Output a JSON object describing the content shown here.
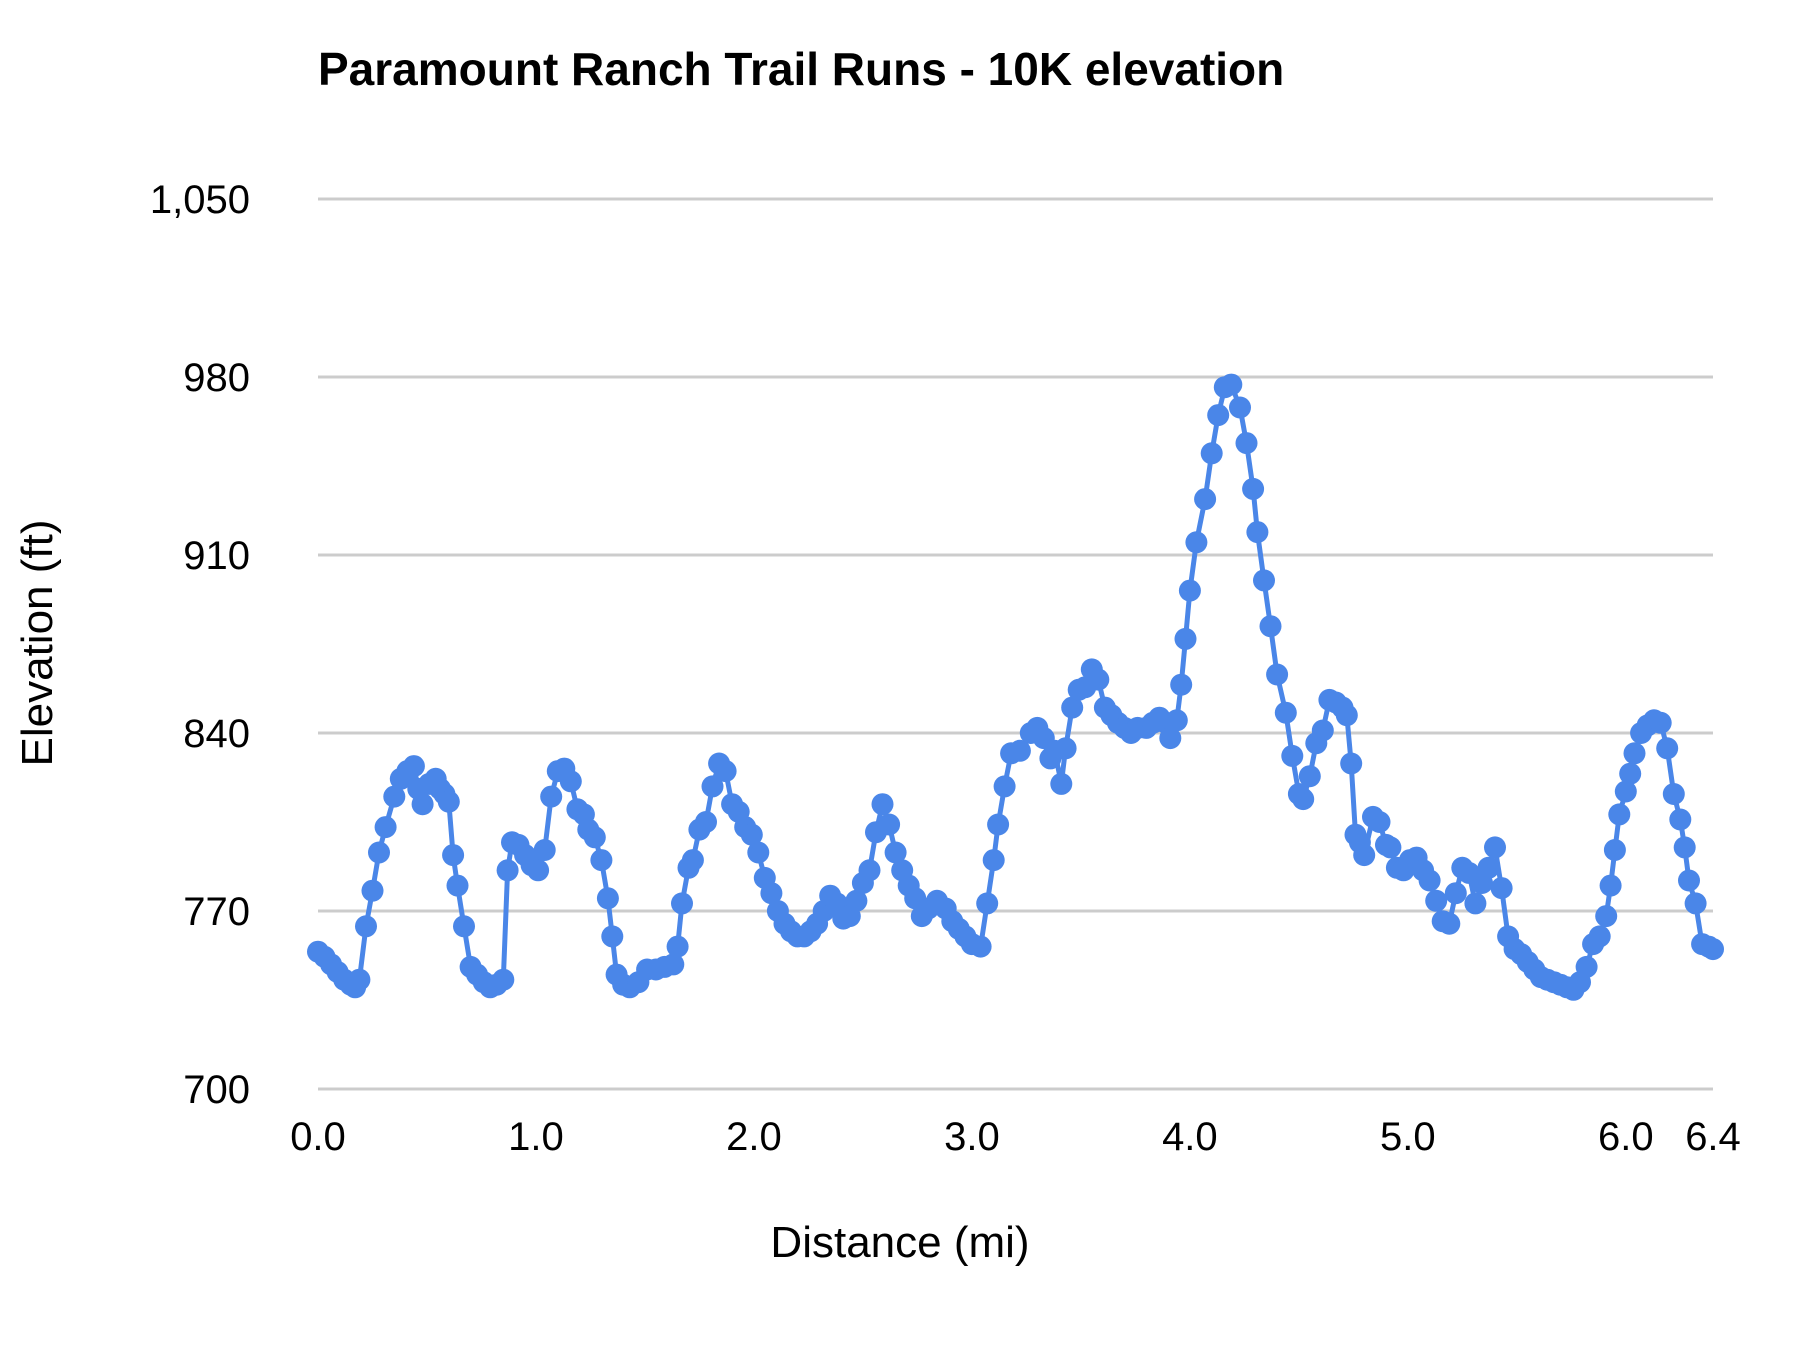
{
  "chart": {
    "title": "Paramount Ranch Trail Runs - 10K elevation",
    "xlabel": "Distance (mi)",
    "ylabel": "Elevation (ft)"
  },
  "chart_data": {
    "type": "line",
    "title": "Paramount Ranch Trail Runs - 10K elevation",
    "xlabel": "Distance (mi)",
    "ylabel": "Elevation (ft)",
    "xlim": [
      0,
      6.4
    ],
    "ylim": [
      700,
      1050
    ],
    "grid": "horizontal",
    "legend": "none",
    "line_color": "#4a86e8",
    "gridline_color": "#cccccc",
    "marker": "circle",
    "x_ticks": {
      "values": [
        0,
        1,
        2,
        3,
        4,
        5,
        6,
        6.4
      ],
      "labels": [
        "0.0",
        "1.0",
        "2.0",
        "3.0",
        "4.0",
        "5.0",
        "6.0",
        "6.4"
      ]
    },
    "y_ticks": {
      "values": [
        700,
        770,
        840,
        910,
        980,
        1050
      ],
      "labels": [
        "700",
        "770",
        "840",
        "910",
        "980",
        "1,050"
      ]
    },
    "series": [
      {
        "name": "10K elevation",
        "points": [
          [
            0.0,
            754
          ],
          [
            0.03,
            752
          ],
          [
            0.06,
            749
          ],
          [
            0.09,
            746
          ],
          [
            0.12,
            743
          ],
          [
            0.15,
            741
          ],
          [
            0.17,
            740
          ],
          [
            0.19,
            743
          ],
          [
            0.22,
            764
          ],
          [
            0.25,
            778
          ],
          [
            0.28,
            793
          ],
          [
            0.31,
            803
          ],
          [
            0.35,
            815
          ],
          [
            0.38,
            822
          ],
          [
            0.41,
            825
          ],
          [
            0.44,
            827
          ],
          [
            0.46,
            818
          ],
          [
            0.48,
            812
          ],
          [
            0.51,
            820
          ],
          [
            0.54,
            822
          ],
          [
            0.56,
            818
          ],
          [
            0.58,
            816
          ],
          [
            0.6,
            813
          ],
          [
            0.62,
            792
          ],
          [
            0.64,
            780
          ],
          [
            0.67,
            764
          ],
          [
            0.7,
            748
          ],
          [
            0.73,
            745
          ],
          [
            0.76,
            742
          ],
          [
            0.79,
            740
          ],
          [
            0.82,
            741
          ],
          [
            0.85,
            743
          ],
          [
            0.87,
            786
          ],
          [
            0.89,
            797
          ],
          [
            0.92,
            796
          ],
          [
            0.95,
            792
          ],
          [
            0.98,
            788
          ],
          [
            1.01,
            786
          ],
          [
            1.04,
            794
          ],
          [
            1.07,
            815
          ],
          [
            1.1,
            825
          ],
          [
            1.13,
            826
          ],
          [
            1.16,
            821
          ],
          [
            1.19,
            810
          ],
          [
            1.22,
            808
          ],
          [
            1.24,
            802
          ],
          [
            1.27,
            799
          ],
          [
            1.3,
            790
          ],
          [
            1.33,
            775
          ],
          [
            1.35,
            760
          ],
          [
            1.37,
            745
          ],
          [
            1.4,
            741
          ],
          [
            1.43,
            740
          ],
          [
            1.47,
            742
          ],
          [
            1.51,
            747
          ],
          [
            1.55,
            747
          ],
          [
            1.59,
            748
          ],
          [
            1.63,
            749
          ],
          [
            1.65,
            756
          ],
          [
            1.67,
            773
          ],
          [
            1.7,
            787
          ],
          [
            1.72,
            790
          ],
          [
            1.75,
            802
          ],
          [
            1.78,
            805
          ],
          [
            1.81,
            819
          ],
          [
            1.84,
            828
          ],
          [
            1.87,
            825
          ],
          [
            1.9,
            812
          ],
          [
            1.93,
            809
          ],
          [
            1.96,
            803
          ],
          [
            1.99,
            800
          ],
          [
            2.02,
            793
          ],
          [
            2.05,
            783
          ],
          [
            2.08,
            777
          ],
          [
            2.11,
            770
          ],
          [
            2.14,
            765
          ],
          [
            2.17,
            762
          ],
          [
            2.2,
            760
          ],
          [
            2.23,
            760
          ],
          [
            2.26,
            762
          ],
          [
            2.29,
            765
          ],
          [
            2.32,
            770
          ],
          [
            2.35,
            776
          ],
          [
            2.38,
            773
          ],
          [
            2.41,
            767
          ],
          [
            2.44,
            768
          ],
          [
            2.47,
            774
          ],
          [
            2.5,
            781
          ],
          [
            2.53,
            786
          ],
          [
            2.56,
            801
          ],
          [
            2.59,
            812
          ],
          [
            2.62,
            804
          ],
          [
            2.65,
            793
          ],
          [
            2.68,
            786
          ],
          [
            2.71,
            780
          ],
          [
            2.74,
            775
          ],
          [
            2.77,
            768
          ],
          [
            2.8,
            771
          ],
          [
            2.84,
            774
          ],
          [
            2.88,
            771
          ],
          [
            2.91,
            766
          ],
          [
            2.94,
            763
          ],
          [
            2.97,
            760
          ],
          [
            3.0,
            757
          ],
          [
            3.04,
            756
          ],
          [
            3.07,
            773
          ],
          [
            3.1,
            790
          ],
          [
            3.12,
            804
          ],
          [
            3.15,
            819
          ],
          [
            3.18,
            832
          ],
          [
            3.22,
            833
          ],
          [
            3.27,
            840
          ],
          [
            3.3,
            842
          ],
          [
            3.33,
            838
          ],
          [
            3.36,
            830
          ],
          [
            3.38,
            833
          ],
          [
            3.41,
            820
          ],
          [
            3.43,
            834
          ],
          [
            3.46,
            850
          ],
          [
            3.49,
            857
          ],
          [
            3.52,
            858
          ],
          [
            3.55,
            865
          ],
          [
            3.58,
            861
          ],
          [
            3.61,
            850
          ],
          [
            3.64,
            847
          ],
          [
            3.67,
            844
          ],
          [
            3.7,
            842
          ],
          [
            3.73,
            840
          ],
          [
            3.76,
            842
          ],
          [
            3.8,
            842
          ],
          [
            3.83,
            844
          ],
          [
            3.86,
            846
          ],
          [
            3.89,
            844
          ],
          [
            3.91,
            838
          ],
          [
            3.94,
            845
          ],
          [
            3.96,
            859
          ],
          [
            3.98,
            877
          ],
          [
            4.0,
            896
          ],
          [
            4.03,
            915
          ],
          [
            4.07,
            932
          ],
          [
            4.1,
            950
          ],
          [
            4.13,
            965
          ],
          [
            4.16,
            976
          ],
          [
            4.19,
            977
          ],
          [
            4.23,
            968
          ],
          [
            4.26,
            954
          ],
          [
            4.29,
            936
          ],
          [
            4.31,
            919
          ],
          [
            4.34,
            900
          ],
          [
            4.37,
            882
          ],
          [
            4.4,
            863
          ],
          [
            4.44,
            848
          ],
          [
            4.47,
            831
          ],
          [
            4.5,
            816
          ],
          [
            4.52,
            814
          ],
          [
            4.55,
            823
          ],
          [
            4.58,
            836
          ],
          [
            4.61,
            841
          ],
          [
            4.64,
            853
          ],
          [
            4.67,
            852
          ],
          [
            4.7,
            850
          ],
          [
            4.72,
            847
          ],
          [
            4.74,
            828
          ],
          [
            4.76,
            800
          ],
          [
            4.78,
            797
          ],
          [
            4.8,
            792
          ],
          [
            4.84,
            807
          ],
          [
            4.87,
            805
          ],
          [
            4.9,
            796
          ],
          [
            4.92,
            795
          ],
          [
            4.95,
            787
          ],
          [
            4.98,
            786
          ],
          [
            5.01,
            790
          ],
          [
            5.04,
            791
          ],
          [
            5.07,
            786
          ],
          [
            5.1,
            782
          ],
          [
            5.13,
            774
          ],
          [
            5.16,
            766
          ],
          [
            5.19,
            765
          ],
          [
            5.22,
            777
          ],
          [
            5.25,
            787
          ],
          [
            5.28,
            785
          ],
          [
            5.31,
            773
          ],
          [
            5.34,
            781
          ],
          [
            5.37,
            787
          ],
          [
            5.4,
            795
          ],
          [
            5.43,
            779
          ],
          [
            5.46,
            760
          ],
          [
            5.49,
            755
          ],
          [
            5.52,
            753
          ],
          [
            5.55,
            750
          ],
          [
            5.58,
            747
          ],
          [
            5.61,
            744
          ],
          [
            5.64,
            743
          ],
          [
            5.67,
            742
          ],
          [
            5.7,
            741
          ],
          [
            5.73,
            740
          ],
          [
            5.76,
            739
          ],
          [
            5.79,
            742
          ],
          [
            5.82,
            748
          ],
          [
            5.85,
            757
          ],
          [
            5.88,
            760
          ],
          [
            5.91,
            768
          ],
          [
            5.93,
            780
          ],
          [
            5.95,
            794
          ],
          [
            5.97,
            808
          ],
          [
            6.0,
            817
          ],
          [
            6.02,
            824
          ],
          [
            6.04,
            832
          ],
          [
            6.07,
            840
          ],
          [
            6.1,
            843
          ],
          [
            6.13,
            845
          ],
          [
            6.16,
            844
          ],
          [
            6.19,
            834
          ],
          [
            6.22,
            816
          ],
          [
            6.25,
            806
          ],
          [
            6.27,
            795
          ],
          [
            6.29,
            782
          ],
          [
            6.32,
            773
          ],
          [
            6.35,
            757
          ],
          [
            6.38,
            756
          ],
          [
            6.4,
            755
          ]
        ]
      }
    ]
  }
}
